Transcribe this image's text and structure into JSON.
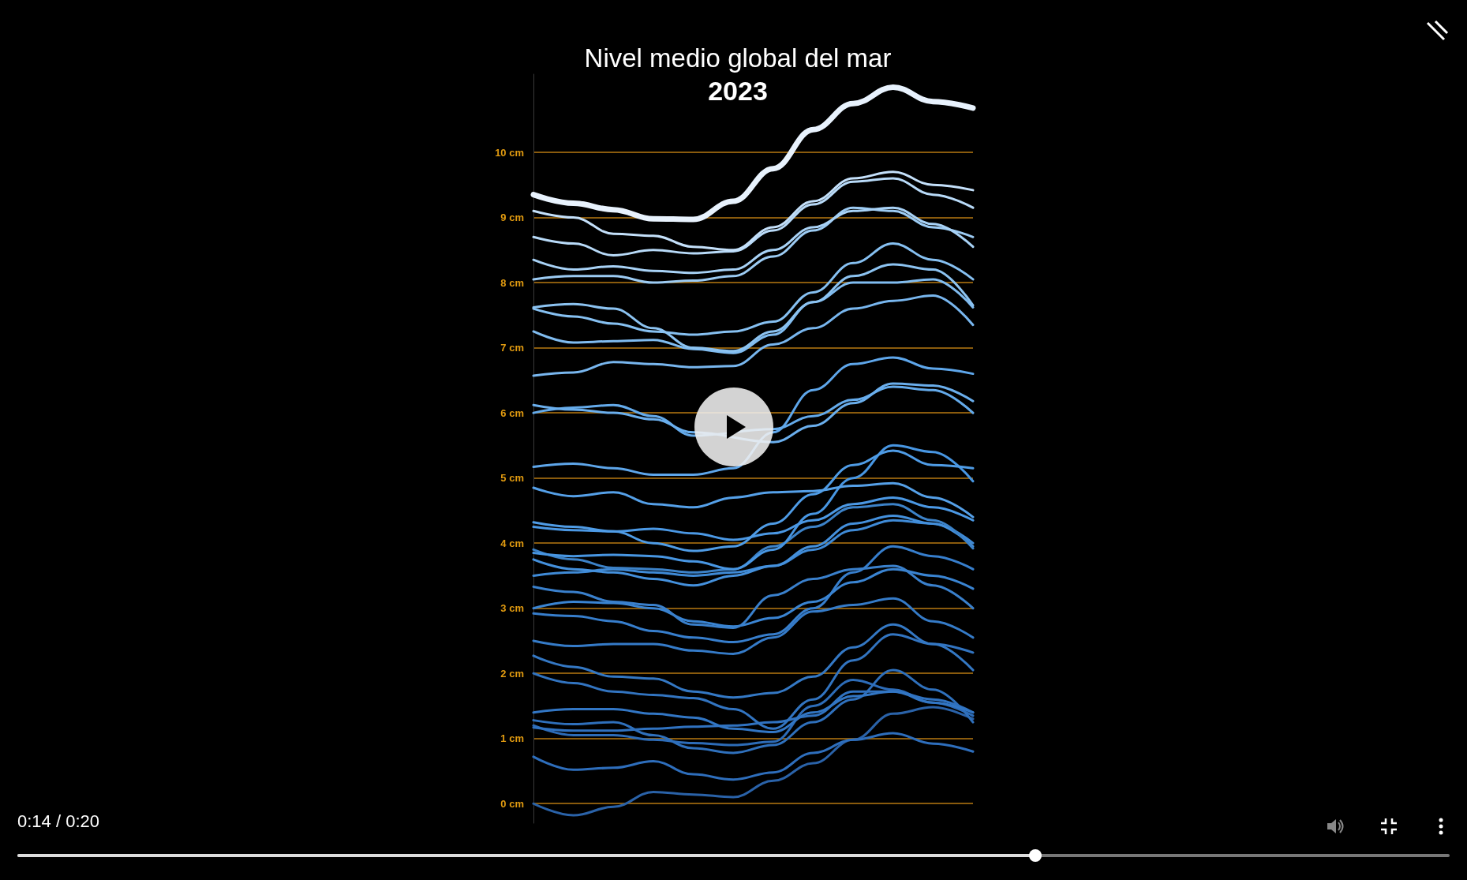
{
  "chart_data": {
    "type": "line",
    "title": "Nivel medio global del mar",
    "subtitle": "2023",
    "categories": [
      null,
      null,
      null,
      null,
      null,
      null,
      null,
      null,
      null,
      null,
      null,
      null
    ],
    "ylim": [
      -0.3,
      11.2
    ],
    "yticks": [
      {
        "value": 0,
        "label": "0 cm"
      },
      {
        "value": 1,
        "label": "1 cm"
      },
      {
        "value": 2,
        "label": "2 cm"
      },
      {
        "value": 3,
        "label": "3 cm"
      },
      {
        "value": 4,
        "label": "4 cm"
      },
      {
        "value": 5,
        "label": "5 cm"
      },
      {
        "value": 6,
        "label": "6 cm"
      },
      {
        "value": 7,
        "label": "7 cm"
      },
      {
        "value": 8,
        "label": "8 cm"
      },
      {
        "value": 9,
        "label": "9 cm"
      },
      {
        "value": 10,
        "label": "10 cm"
      }
    ],
    "grid": "y",
    "marker": "none",
    "line_style": "solid",
    "tick_labels": "y",
    "annotations": [
      "0:14 / 0:20"
    ],
    "series": [
      {
        "color": "#e8f2fd",
        "values": [
          9.35,
          9.22,
          9.12,
          8.98,
          8.97,
          9.25,
          9.75,
          10.35,
          10.75,
          11.0,
          10.78,
          10.68
        ]
      },
      {
        "color": "#c4e0fa",
        "values": [
          9.1,
          9.0,
          8.75,
          8.72,
          8.55,
          8.5,
          8.85,
          9.25,
          9.6,
          9.7,
          9.5,
          9.42
        ]
      },
      {
        "color": "#b8daf8",
        "values": [
          8.7,
          8.6,
          8.42,
          8.5,
          8.45,
          8.48,
          8.8,
          9.2,
          9.55,
          9.6,
          9.35,
          9.15
        ]
      },
      {
        "color": "#a8d2f6",
        "values": [
          8.35,
          8.2,
          8.25,
          8.18,
          8.15,
          8.2,
          8.5,
          8.85,
          9.1,
          9.15,
          8.9,
          8.55
        ]
      },
      {
        "color": "#9ccbf3",
        "values": [
          8.05,
          8.1,
          8.1,
          8.0,
          8.03,
          8.1,
          8.4,
          8.8,
          9.15,
          9.1,
          8.85,
          8.7
        ]
      },
      {
        "color": "#8cc3f1",
        "values": [
          7.62,
          7.67,
          7.6,
          7.3,
          7.0,
          6.95,
          7.25,
          7.7,
          8.1,
          8.28,
          8.2,
          7.65
        ]
      },
      {
        "color": "#86c0f1",
        "values": [
          7.6,
          7.48,
          7.37,
          7.25,
          7.2,
          7.25,
          7.4,
          7.85,
          8.3,
          8.6,
          8.35,
          8.05
        ]
      },
      {
        "color": "#80bcf0",
        "values": [
          7.25,
          7.08,
          7.1,
          7.12,
          6.98,
          6.92,
          7.2,
          7.7,
          8.0,
          8.0,
          8.05,
          7.62
        ]
      },
      {
        "color": "#78b6ee",
        "values": [
          6.57,
          6.62,
          6.78,
          6.75,
          6.7,
          6.72,
          7.05,
          7.3,
          7.6,
          7.72,
          7.8,
          7.35
        ]
      },
      {
        "color": "#6aaeec",
        "values": [
          6.12,
          6.05,
          6.0,
          5.9,
          5.7,
          null,
          5.55,
          5.8,
          6.15,
          6.45,
          6.42,
          6.18
        ]
      },
      {
        "color": "#64aaea",
        "values": [
          6.0,
          6.08,
          6.12,
          5.95,
          5.65,
          null,
          5.75,
          5.95,
          6.2,
          6.4,
          6.35,
          6.0
        ]
      },
      {
        "color": "#5ea6ea",
        "values": [
          5.17,
          5.22,
          5.15,
          5.05,
          5.05,
          5.15,
          5.7,
          6.35,
          6.75,
          6.85,
          6.68,
          6.6
        ]
      },
      {
        "color": "#55a0e8",
        "values": [
          4.85,
          4.72,
          4.78,
          4.6,
          4.55,
          4.7,
          4.78,
          4.8,
          4.88,
          4.92,
          4.7,
          4.4
        ]
      },
      {
        "color": "#4f9ce6",
        "values": [
          4.32,
          4.25,
          4.18,
          4.0,
          3.88,
          3.95,
          4.3,
          4.75,
          5.2,
          5.42,
          5.2,
          5.15
        ]
      },
      {
        "color": "#4b98e4",
        "values": [
          4.25,
          4.2,
          4.18,
          4.22,
          4.15,
          4.05,
          4.15,
          4.35,
          4.6,
          4.7,
          4.55,
          4.35
        ]
      },
      {
        "color": "#4896e2",
        "values": [
          3.85,
          3.8,
          3.82,
          3.8,
          3.72,
          3.6,
          3.9,
          4.45,
          5.0,
          5.5,
          5.4,
          4.95
        ]
      },
      {
        "color": "#3c82c8",
        "values": [
          3.9,
          3.75,
          3.62,
          3.6,
          3.55,
          3.6,
          3.95,
          4.25,
          4.55,
          4.6,
          4.35,
          3.92
        ]
      },
      {
        "color": "#4490dc",
        "values": [
          3.75,
          3.6,
          3.55,
          3.45,
          3.35,
          3.5,
          3.65,
          3.95,
          4.3,
          4.42,
          4.3,
          3.95
        ]
      },
      {
        "color": "#3f8ad6",
        "values": [
          3.5,
          3.55,
          3.6,
          3.55,
          3.5,
          3.55,
          3.65,
          3.9,
          4.2,
          4.35,
          4.3,
          4.0
        ]
      },
      {
        "color": "#3a80cc",
        "values": [
          3.33,
          3.25,
          3.1,
          3.05,
          2.75,
          2.7,
          3.2,
          3.45,
          3.6,
          3.65,
          3.35,
          3.0
        ]
      },
      {
        "color": "#3a84d2",
        "values": [
          3.0,
          3.1,
          3.08,
          3.0,
          2.8,
          2.72,
          2.85,
          3.1,
          3.4,
          3.6,
          3.5,
          3.3
        ]
      },
      {
        "color": "#377ecc",
        "values": [
          2.92,
          2.88,
          2.8,
          2.65,
          2.55,
          2.48,
          2.6,
          3.0,
          3.55,
          3.95,
          3.8,
          3.6
        ]
      },
      {
        "color": "#357bc8",
        "values": [
          2.5,
          2.42,
          2.45,
          2.45,
          2.35,
          2.3,
          2.55,
          2.95,
          3.05,
          3.15,
          2.8,
          2.55
        ]
      },
      {
        "color": "#3478c4",
        "values": [
          2.27,
          2.1,
          1.95,
          1.92,
          1.72,
          1.63,
          1.7,
          1.95,
          2.4,
          2.75,
          2.45,
          2.05
        ]
      },
      {
        "color": "#3274c0",
        "values": [
          2.0,
          1.85,
          1.72,
          1.67,
          1.62,
          1.45,
          1.15,
          1.6,
          2.2,
          2.6,
          2.45,
          2.32
        ]
      },
      {
        "color": "#3276c4",
        "values": [
          1.4,
          1.45,
          1.45,
          1.38,
          1.32,
          1.15,
          1.1,
          1.4,
          1.65,
          1.72,
          1.55,
          1.4
        ]
      },
      {
        "color": "#2f70bc",
        "values": [
          1.28,
          1.22,
          1.25,
          1.05,
          0.85,
          0.78,
          0.9,
          1.25,
          1.6,
          2.05,
          1.75,
          1.25
        ]
      },
      {
        "color": "#3072c0",
        "values": [
          1.17,
          1.12,
          1.12,
          1.15,
          1.18,
          1.2,
          1.25,
          1.35,
          1.72,
          1.72,
          1.6,
          1.4
        ]
      },
      {
        "color": "#2d6cb8",
        "values": [
          1.2,
          1.05,
          1.05,
          0.98,
          0.93,
          0.9,
          0.95,
          1.5,
          1.9,
          1.75,
          1.55,
          1.35
        ]
      },
      {
        "color": "#2e6ebc",
        "values": [
          0.72,
          0.52,
          0.55,
          0.65,
          0.45,
          0.37,
          0.48,
          0.78,
          0.98,
          1.08,
          0.92,
          0.8
        ]
      },
      {
        "color": "#2a62a8",
        "values": [
          0.0,
          -0.18,
          -0.05,
          0.18,
          0.14,
          0.1,
          0.35,
          0.62,
          0.98,
          1.38,
          1.48,
          1.3
        ]
      }
    ]
  }
}
